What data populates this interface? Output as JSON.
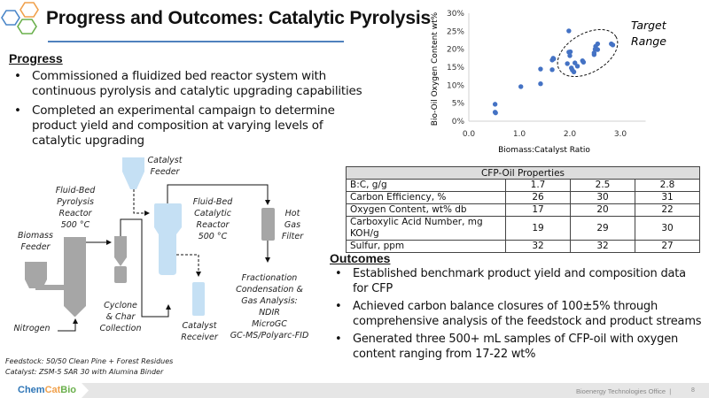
{
  "header": {
    "title": "Progress and Outcomes: Catalytic Pyrolysis"
  },
  "progress": {
    "heading": "Progress",
    "items": [
      "Commissioned a fluidized bed reactor system with continuous pyrolysis and catalytic upgrading capabilities",
      "Completed an experimental campaign to determine product yield and composition at varying levels of catalytic upgrading"
    ]
  },
  "diagram": {
    "catalyst_feeder": [
      "Catalyst",
      "Feeder"
    ],
    "pyrolysis_reactor": [
      "Fluid-Bed",
      "Pyrolysis",
      "Reactor",
      "500 °C"
    ],
    "biomass_feeder": [
      "Biomass",
      "Feeder"
    ],
    "catalytic_reactor": [
      "Fluid-Bed",
      "Catalytic",
      "Reactor",
      "500 °C"
    ],
    "hot_gas_filter": [
      "Hot",
      "Gas",
      "Filter"
    ],
    "cyclone": [
      "Cyclone",
      "& Char",
      "Collection"
    ],
    "nitrogen": "Nitrogen",
    "catalyst_receiver": [
      "Catalyst",
      "Receiver"
    ],
    "analysis": [
      "Fractionation",
      "Condensation &",
      "Gas Analysis:",
      "NDIR",
      "MicroGC",
      "GC-MS/Polyarc-FID"
    ],
    "feedstock_note": "Feedstock: 50/50 Clean Pine + Forest Residues",
    "catalyst_note": "Catalyst: ZSM-5 SAR 30 with Alumina Binder",
    "colors": {
      "gray": "#a6a6a6",
      "blue": "#c5e0f4"
    }
  },
  "chart_data": {
    "type": "scatter",
    "xlabel": "Biomass:Catalyst Ratio",
    "ylabel": "Bio-Oil Oxygen Content wt%",
    "xlim": [
      0,
      3.5
    ],
    "ylim": [
      0,
      30
    ],
    "x_ticks": [
      "0.0",
      "1.0",
      "2.0",
      "3.0"
    ],
    "y_ticks": [
      "0%",
      "5%",
      "10%",
      "15%",
      "20%",
      "25%",
      "30%"
    ],
    "annotation": [
      "Target",
      "Range"
    ],
    "color": "#4472c4",
    "points": [
      [
        0.52,
        4.7
      ],
      [
        0.52,
        2.5
      ],
      [
        0.53,
        2.3
      ],
      [
        1.03,
        9.6
      ],
      [
        1.42,
        14.5
      ],
      [
        1.42,
        10.4
      ],
      [
        1.65,
        14.3
      ],
      [
        1.65,
        17.0
      ],
      [
        1.67,
        17.5
      ],
      [
        1.68,
        17.3
      ],
      [
        1.98,
        25.1
      ],
      [
        1.98,
        19.2
      ],
      [
        2.0,
        18.2
      ],
      [
        2.01,
        19.3
      ],
      [
        1.95,
        16.0
      ],
      [
        2.03,
        14.8
      ],
      [
        2.05,
        14.2
      ],
      [
        2.08,
        13.7
      ],
      [
        2.1,
        16.2
      ],
      [
        2.15,
        15.3
      ],
      [
        2.25,
        16.8
      ],
      [
        2.27,
        16.4
      ],
      [
        2.48,
        18.5
      ],
      [
        2.48,
        19.0
      ],
      [
        2.5,
        20.0
      ],
      [
        2.51,
        20.8
      ],
      [
        2.55,
        21.5
      ],
      [
        2.55,
        19.9
      ],
      [
        2.82,
        21.5
      ],
      [
        2.85,
        21.2
      ]
    ]
  },
  "table": {
    "title": "CFP-Oil Properties",
    "rows": [
      {
        "label": "B:C, g/g",
        "values": [
          "1.7",
          "2.5",
          "2.8"
        ]
      },
      {
        "label": "Carbon Efficiency, %",
        "values": [
          "26",
          "30",
          "31"
        ]
      },
      {
        "label": "Oxygen Content, wt% db",
        "values": [
          "17",
          "20",
          "22"
        ]
      },
      {
        "label": "Carboxylic Acid Number, mg KOH/g",
        "values": [
          "19",
          "29",
          "30"
        ]
      },
      {
        "label": "Sulfur, ppm",
        "values": [
          "32",
          "32",
          "27"
        ]
      }
    ]
  },
  "outcomes": {
    "heading": "Outcomes",
    "items": [
      "Established benchmark product yield and composition data for CFP",
      "Achieved carbon balance closures of 100±5% through comprehensive analysis of the feedstock and product streams",
      "Generated three 500+ mL samples of CFP-oil with oxygen content ranging from 17-22 wt%"
    ]
  },
  "footer": {
    "logo_a": "Chem",
    "logo_b": "Cat",
    "logo_c": "Bio",
    "office": "Bioenergy Technologies Office",
    "separator": "|",
    "page": "8"
  }
}
